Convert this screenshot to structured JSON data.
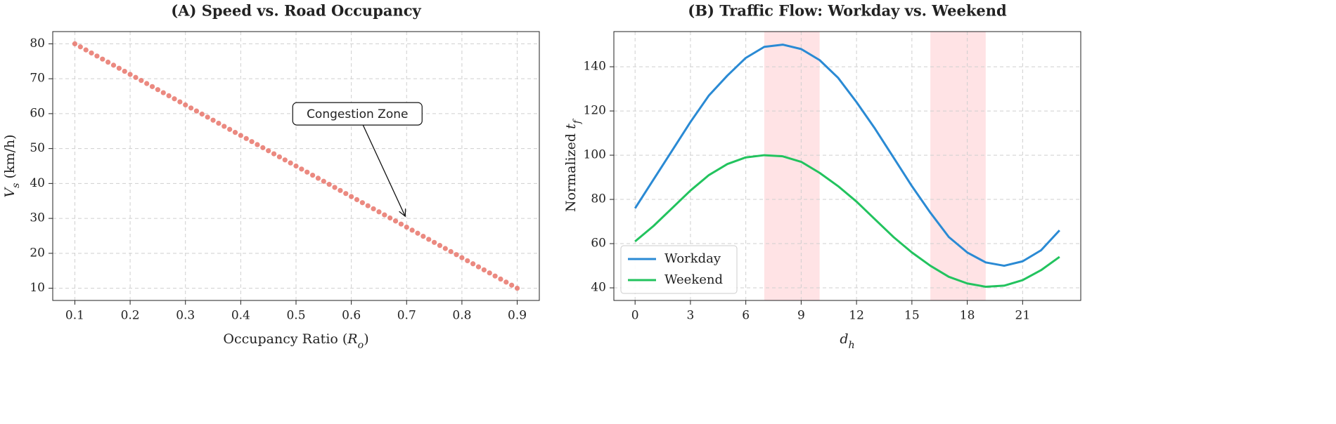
{
  "chart_data": [
    {
      "type": "scatter",
      "title": "(A) Speed vs. Road Occupancy",
      "xlabel": "Occupancy Ratio (R_o)",
      "ylabel": "V_s (km/h)",
      "x": [
        0.1,
        0.11,
        0.12,
        0.13,
        0.14,
        0.15,
        0.16,
        0.17,
        0.18,
        0.19,
        0.2,
        0.21,
        0.22,
        0.23,
        0.24,
        0.25,
        0.26,
        0.27,
        0.28,
        0.29,
        0.3,
        0.31,
        0.32,
        0.33,
        0.34,
        0.35,
        0.36,
        0.37,
        0.38,
        0.39,
        0.4,
        0.41,
        0.42,
        0.43,
        0.44,
        0.45,
        0.46,
        0.47,
        0.48,
        0.49,
        0.5,
        0.51,
        0.52,
        0.53,
        0.54,
        0.55,
        0.56,
        0.57,
        0.58,
        0.59,
        0.6,
        0.61,
        0.62,
        0.63,
        0.64,
        0.65,
        0.66,
        0.67,
        0.68,
        0.69,
        0.7,
        0.71,
        0.72,
        0.73,
        0.74,
        0.75,
        0.76,
        0.77,
        0.78,
        0.79,
        0.8,
        0.81,
        0.82,
        0.83,
        0.84,
        0.85,
        0.86,
        0.87,
        0.88,
        0.89,
        0.9
      ],
      "values": [
        80,
        79.125,
        78.25,
        77.375,
        76.5,
        75.625,
        74.75,
        73.875,
        73,
        72.125,
        71.25,
        70.375,
        69.5,
        68.625,
        67.75,
        66.875,
        66,
        65.125,
        64.25,
        63.375,
        62.5,
        61.625,
        60.75,
        59.875,
        59,
        58.125,
        57.25,
        56.375,
        55.5,
        54.625,
        53.75,
        52.875,
        52,
        51.125,
        50.25,
        49.375,
        48.5,
        47.625,
        46.75,
        45.875,
        45,
        44.125,
        43.25,
        42.375,
        41.5,
        40.625,
        39.75,
        38.875,
        38,
        37.125,
        36.25,
        35.375,
        34.5,
        33.625,
        32.75,
        31.875,
        31,
        30.125,
        29.25,
        28.375,
        27.5,
        26.625,
        25.75,
        24.875,
        24,
        23.125,
        22.25,
        21.375,
        20.5,
        19.625,
        18.75,
        17.875,
        17,
        16.125,
        15.25,
        14.375,
        13.5,
        12.625,
        11.75,
        10.875,
        10
      ],
      "color": "#e8746a",
      "xlim": [
        0.06,
        0.94
      ],
      "ylim": [
        6.5,
        83.5
      ],
      "xticks": [
        0.1,
        0.2,
        0.3,
        0.4,
        0.5,
        0.6,
        0.7,
        0.8,
        0.9
      ],
      "yticks": [
        10,
        20,
        30,
        40,
        50,
        60,
        70,
        80
      ],
      "grid": true,
      "annotation": {
        "text": "Congestion Zone",
        "x": 0.7,
        "y": 30
      }
    },
    {
      "type": "line",
      "title": "(B) Traffic Flow: Workday vs. Weekend",
      "xlabel": "d_h",
      "ylabel": "Normalized t_f",
      "x": [
        0,
        1,
        2,
        3,
        4,
        5,
        6,
        7,
        8,
        9,
        10,
        11,
        12,
        13,
        14,
        15,
        16,
        17,
        18,
        19,
        20,
        21,
        22,
        23
      ],
      "series": [
        {
          "name": "Workday",
          "color": "#2a8ad4",
          "values": [
            76,
            89,
            102,
            115,
            127,
            136,
            144,
            149,
            150,
            148,
            143,
            135,
            124,
            112,
            99,
            86,
            74,
            63,
            56,
            51.5,
            50,
            52,
            57,
            66
          ]
        },
        {
          "name": "Weekend",
          "color": "#22c35e",
          "values": [
            61,
            68,
            76,
            84,
            91,
            96,
            99,
            100,
            99.5,
            97,
            92,
            86,
            79,
            71,
            63,
            56,
            50,
            45,
            42,
            40.5,
            41,
            43.5,
            48,
            54
          ]
        }
      ],
      "spans": [
        [
          7,
          10
        ],
        [
          16,
          19
        ]
      ],
      "span_color": "#ffc0c6",
      "xlim": [
        -1.15,
        24.15
      ],
      "ylim": [
        34.3,
        155.9
      ],
      "xticks": [
        0,
        3,
        6,
        9,
        12,
        15,
        18,
        21
      ],
      "yticks": [
        40,
        60,
        80,
        100,
        120,
        140
      ],
      "grid": true,
      "legend": "lower left"
    }
  ]
}
